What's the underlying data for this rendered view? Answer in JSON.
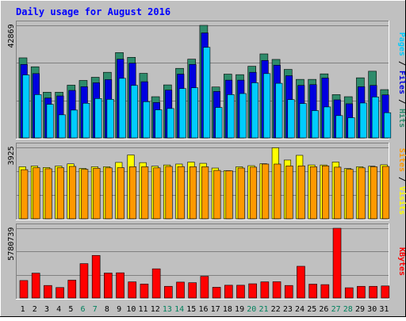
{
  "chart_data": {
    "type": "bar",
    "title": "Daily usage for August 2016",
    "categories": [
      "1",
      "2",
      "3",
      "4",
      "5",
      "6",
      "7",
      "8",
      "9",
      "10",
      "11",
      "12",
      "13",
      "14",
      "15",
      "16",
      "17",
      "18",
      "19",
      "20",
      "21",
      "22",
      "23",
      "24",
      "25",
      "26",
      "27",
      "28",
      "29",
      "30",
      "31"
    ],
    "weekend_days": [
      "6",
      "7",
      "13",
      "14",
      "20",
      "21",
      "27",
      "28"
    ],
    "panels": [
      {
        "id": "hits-files-pages",
        "scale_label": "42869",
        "ylim": [
          0,
          42869
        ],
        "axis_title": [
          "Pages",
          "Files",
          "Hits"
        ],
        "series": [
          {
            "name": "Hits",
            "color": "#2e8b6b",
            "values": [
              30500,
              27100,
              17400,
              17400,
              20100,
              21900,
              23100,
              25000,
              32500,
              30700,
              24600,
              15700,
              20200,
              26500,
              30000,
              42870,
              19400,
              24300,
              24100,
              27300,
              32000,
              29900,
              26100,
              22300,
              22300,
              24400,
              16500,
              15700,
              22900,
              25400,
              18400
            ]
          },
          {
            "name": "Files",
            "color": "#0000e0",
            "values": [
              28000,
              24500,
              15200,
              16000,
              18100,
              19500,
              21000,
              22200,
              30000,
              28500,
              21400,
              13500,
              18200,
              24300,
              28000,
              40000,
              17700,
              22000,
              22000,
              25000,
              29500,
              27700,
              23700,
              20000,
              20300,
              22800,
              14500,
              13000,
              19500,
              20000,
              16400
            ]
          },
          {
            "name": "Pages",
            "color": "#00ccff",
            "values": [
              24000,
              16500,
              12800,
              8800,
              10600,
              13200,
              15000,
              14700,
              22700,
              20000,
              13800,
              10700,
              11200,
              18800,
              19100,
              34500,
              11600,
              16500,
              16900,
              21000,
              24500,
              20800,
              14600,
              13100,
              10400,
              11800,
              8500,
              7700,
              13300,
              15600,
              9600
            ]
          }
        ]
      },
      {
        "id": "visits-sites",
        "scale_label": "3925",
        "ylim": [
          0,
          3925
        ],
        "axis_title": [
          "Sites",
          "Visits"
        ],
        "series": [
          {
            "name": "Visits",
            "color": "#ffff00",
            "values": [
              2860,
              2900,
              2820,
              2900,
              3020,
              2770,
              2860,
              2860,
              3100,
              3510,
              3090,
              2890,
              2960,
              3010,
              3120,
              3050,
              2790,
              2650,
              2860,
              2920,
              3030,
              3905,
              3230,
              3490,
              2960,
              2960,
              3120,
              2760,
              2860,
              2890,
              2970
            ]
          },
          {
            "name": "Sites",
            "color": "#ff9900",
            "values": [
              2700,
              2810,
              2750,
              2810,
              2880,
              2720,
              2780,
              2800,
              2810,
              2860,
              2860,
              2800,
              2880,
              2870,
              2860,
              2860,
              2660,
              2640,
              2790,
              2840,
              3010,
              3010,
              2910,
              2910,
              2860,
              2910,
              2840,
              2720,
              2800,
              2860,
              2880
            ]
          }
        ]
      },
      {
        "id": "kbytes",
        "scale_label": "5780739",
        "ylim": [
          0,
          5780739
        ],
        "axis_title": [
          "KBytes"
        ],
        "series": [
          {
            "name": "KBytes",
            "color": "#ff0000",
            "values": [
              1450000,
              2060000,
              1040000,
              870000,
              1480000,
              2850000,
              3530000,
              2070000,
              2090000,
              1340000,
              1160000,
              2420000,
              970000,
              1320000,
              1270000,
              1800000,
              890000,
              1060000,
              1060000,
              1180000,
              1340000,
              1350000,
              1040000,
              2630000,
              1150000,
              1110000,
              5780000,
              850000,
              970000,
              970000,
              1000000
            ]
          }
        ]
      }
    ],
    "colors": {
      "background": "#c0c0c0",
      "plot_area": "#c0c0c0",
      "grid": "#808080",
      "title": "#0000ff",
      "weekend": "#00805c"
    }
  }
}
